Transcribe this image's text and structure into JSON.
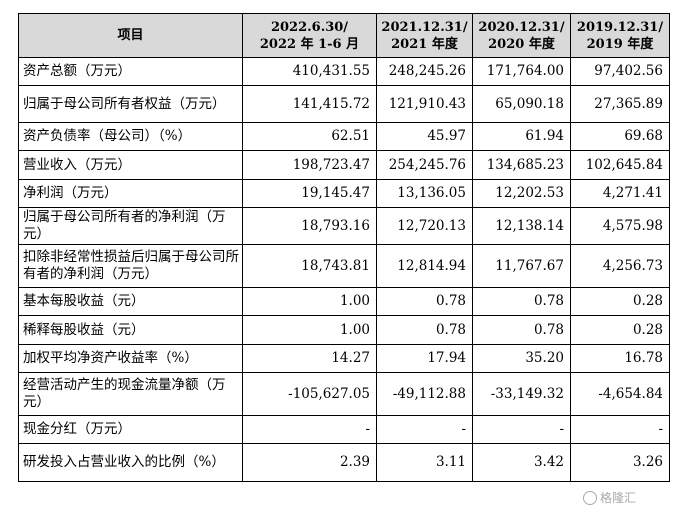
{
  "table": {
    "headers": [
      {
        "line1": "项目",
        "line2": ""
      },
      {
        "line1": "2022.6.30/",
        "line2": "2022 年 1-6 月"
      },
      {
        "line1": "2021.12.31/",
        "line2": "2021 年度"
      },
      {
        "line1": "2020.12.31/",
        "line2": "2020 年度"
      },
      {
        "line1": "2019.12.31/",
        "line2": "2019 年度"
      }
    ],
    "rows": [
      {
        "label": "资产总额（万元）",
        "values": [
          "410,431.55",
          "248,245.26",
          "171,764.00",
          "97,402.56"
        ]
      },
      {
        "label": "归属于母公司所有者权益（万元）",
        "values": [
          "141,415.72",
          "121,910.43",
          "65,090.18",
          "27,365.89"
        ]
      },
      {
        "label": "资产负债率（母公司）（%）",
        "values": [
          "62.51",
          "45.97",
          "61.94",
          "69.68"
        ]
      },
      {
        "label": "营业收入（万元）",
        "values": [
          "198,723.47",
          "254,245.76",
          "134,685.23",
          "102,645.84"
        ]
      },
      {
        "label": "净利润（万元）",
        "values": [
          "19,145.47",
          "13,136.05",
          "12,202.53",
          "4,271.41"
        ]
      },
      {
        "label": "归属于母公司所有者的净利润（万元）",
        "values": [
          "18,793.16",
          "12,720.13",
          "12,138.14",
          "4,575.98"
        ]
      },
      {
        "label": "扣除非经常性损益后归属于母公司所有者的净利润（万元）",
        "values": [
          "18,743.81",
          "12,814.94",
          "11,767.67",
          "4,256.73"
        ]
      },
      {
        "label": "基本每股收益（元）",
        "values": [
          "1.00",
          "0.78",
          "0.78",
          "0.28"
        ]
      },
      {
        "label": "稀释每股收益（元）",
        "values": [
          "1.00",
          "0.78",
          "0.78",
          "0.28"
        ]
      },
      {
        "label": "加权平均净资产收益率（%）",
        "values": [
          "14.27",
          "17.94",
          "35.20",
          "16.78"
        ]
      },
      {
        "label": "经营活动产生的现金流量净额（万元）",
        "values": [
          "-105,627.05",
          "-49,112.88",
          "-33,149.32",
          "-4,654.84"
        ]
      },
      {
        "label": "现金分红（万元）",
        "values": [
          "-",
          "-",
          "-",
          "-"
        ]
      },
      {
        "label": "研发投入占营业收入的比例（%）",
        "values": [
          "2.39",
          "3.11",
          "3.42",
          "3.26"
        ]
      }
    ]
  },
  "watermark": {
    "text": "格隆汇",
    "icon": "gelonghui-logo-icon"
  }
}
